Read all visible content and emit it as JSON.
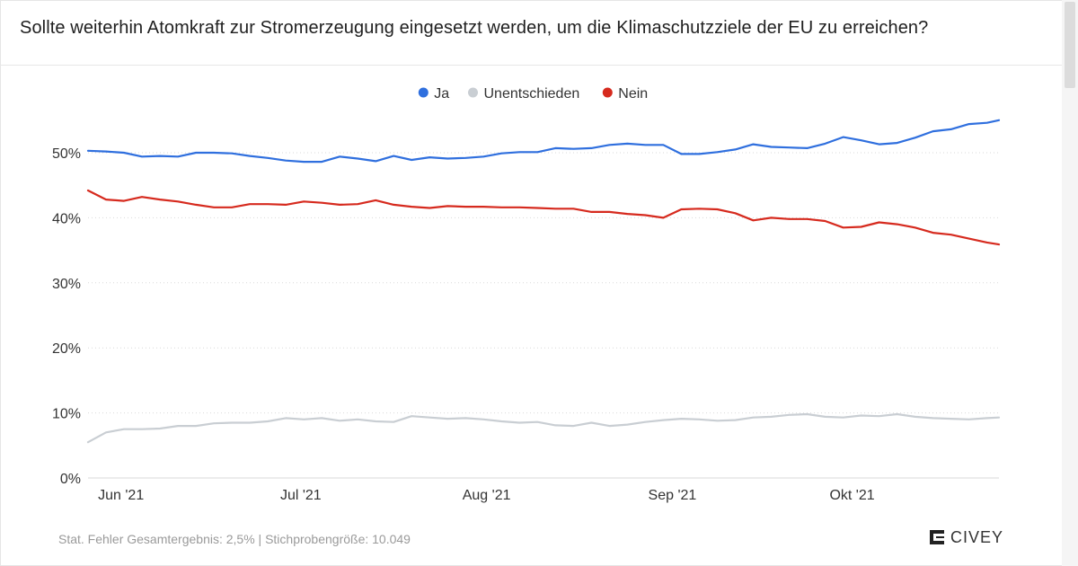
{
  "title": "Sollte weiterhin Atomkraft zur Stromerzeugung eingesetzt werden, um die Klimaschutzziele der EU zu erreichen?",
  "footer_note": "Stat. Fehler Gesamtergebnis: 2,5% | Stichprobengröße: 10.049",
  "brand": "CIVEY",
  "chart_data": {
    "type": "line",
    "title": "Sollte weiterhin Atomkraft zur Stromerzeugung eingesetzt werden, um die Klimaschutzziele der EU zu erreichen?",
    "xlabel": "",
    "ylabel": "",
    "ylim": [
      0,
      55
    ],
    "yticks": [
      0,
      10,
      20,
      30,
      40,
      50
    ],
    "ytick_labels": [
      "0%",
      "10%",
      "20%",
      "30%",
      "40%",
      "50%"
    ],
    "xlim": [
      "2021-05-28",
      "2021-10-27"
    ],
    "xticks": [
      "2021-06-01",
      "2021-07-01",
      "2021-08-01",
      "2021-09-01",
      "2021-10-01"
    ],
    "xtick_labels": [
      "Jun '21",
      "Jul '21",
      "Aug '21",
      "Sep '21",
      "Okt '21"
    ],
    "grid": "horizontal dotted",
    "legend": "top-center",
    "x": [
      "2021-05-28",
      "2021-05-31",
      "2021-06-03",
      "2021-06-06",
      "2021-06-09",
      "2021-06-12",
      "2021-06-15",
      "2021-06-18",
      "2021-06-21",
      "2021-06-24",
      "2021-06-27",
      "2021-06-30",
      "2021-07-03",
      "2021-07-06",
      "2021-07-09",
      "2021-07-12",
      "2021-07-15",
      "2021-07-18",
      "2021-07-21",
      "2021-07-24",
      "2021-07-27",
      "2021-07-30",
      "2021-08-02",
      "2021-08-05",
      "2021-08-08",
      "2021-08-11",
      "2021-08-14",
      "2021-08-17",
      "2021-08-20",
      "2021-08-23",
      "2021-08-26",
      "2021-08-29",
      "2021-09-01",
      "2021-09-04",
      "2021-09-07",
      "2021-09-10",
      "2021-09-13",
      "2021-09-16",
      "2021-09-19",
      "2021-09-22",
      "2021-09-25",
      "2021-09-28",
      "2021-10-01",
      "2021-10-04",
      "2021-10-07",
      "2021-10-10",
      "2021-10-13",
      "2021-10-16",
      "2021-10-19",
      "2021-10-22",
      "2021-10-25",
      "2021-10-27"
    ],
    "series": [
      {
        "name": "Ja",
        "color": "#2f6fde",
        "values": [
          50.3,
          50.2,
          50.0,
          49.4,
          49.5,
          49.4,
          50.0,
          50.0,
          49.9,
          49.5,
          49.2,
          48.8,
          48.6,
          48.6,
          49.4,
          49.1,
          48.7,
          49.5,
          48.9,
          49.3,
          49.1,
          49.2,
          49.4,
          49.9,
          50.1,
          50.1,
          50.7,
          50.6,
          50.7,
          51.2,
          51.4,
          51.2,
          51.2,
          49.8,
          49.8,
          50.1,
          50.5,
          51.3,
          50.9,
          50.8,
          50.7,
          51.4,
          52.4,
          51.9,
          51.3,
          51.5,
          52.3,
          53.3,
          53.6,
          54.4,
          54.6,
          55.0
        ]
      },
      {
        "name": "Unentschieden",
        "color": "#c9ced3",
        "values": [
          5.5,
          7.0,
          7.5,
          7.5,
          7.6,
          8.0,
          8.0,
          8.4,
          8.5,
          8.5,
          8.7,
          9.2,
          9.0,
          9.2,
          8.8,
          9.0,
          8.7,
          8.6,
          9.5,
          9.3,
          9.1,
          9.2,
          9.0,
          8.7,
          8.5,
          8.6,
          8.1,
          8.0,
          8.5,
          8.0,
          8.2,
          8.6,
          8.9,
          9.1,
          9.0,
          8.8,
          8.9,
          9.3,
          9.4,
          9.7,
          9.8,
          9.4,
          9.3,
          9.6,
          9.5,
          9.8,
          9.4,
          9.2,
          9.1,
          9.0,
          9.2,
          9.3
        ]
      },
      {
        "name": "Nein",
        "color": "#d62a1e",
        "values": [
          44.2,
          42.8,
          42.6,
          43.2,
          42.8,
          42.5,
          42.0,
          41.6,
          41.6,
          42.1,
          42.1,
          42.0,
          42.5,
          42.3,
          42.0,
          42.1,
          42.7,
          42.0,
          41.7,
          41.5,
          41.8,
          41.7,
          41.7,
          41.6,
          41.6,
          41.5,
          41.4,
          41.4,
          40.9,
          40.9,
          40.6,
          40.4,
          40.0,
          41.3,
          41.4,
          41.3,
          40.7,
          39.6,
          40.0,
          39.8,
          39.8,
          39.5,
          38.5,
          38.6,
          39.3,
          39.0,
          38.5,
          37.7,
          37.4,
          36.8,
          36.2,
          35.9
        ]
      }
    ]
  }
}
